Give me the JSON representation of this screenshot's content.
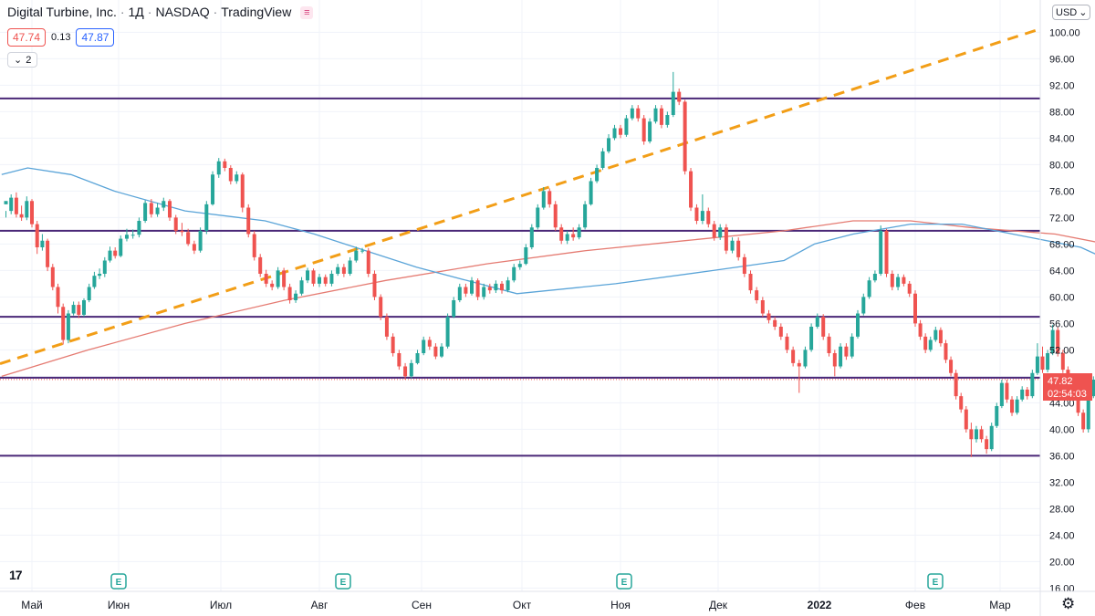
{
  "header": {
    "symbol": "Digital Turbine, Inc.",
    "interval": "1Д",
    "exchange": "NASDAQ",
    "source": "TradingView"
  },
  "prices": {
    "bid": "47.74",
    "spread": "0.13",
    "ask": "47.87"
  },
  "indicators_toggle": {
    "count": "2"
  },
  "currency": "USD",
  "last_price": {
    "value": "47.82",
    "countdown": "02:54:03"
  },
  "colors": {
    "up": "#26a69a",
    "down": "#ef5350",
    "ma_fast": "#5aa4d8",
    "ma_slow": "#e57b72",
    "horizontal_levels": "#4a2777",
    "trendline": "#f29e17"
  },
  "chart_data": {
    "type": "candlestick",
    "ylim": [
      16,
      100
    ],
    "yticks": [
      "16.00",
      "20.00",
      "24.00",
      "28.00",
      "32.00",
      "36.00",
      "40.00",
      "44.00",
      "48.00",
      "52.00",
      "56.00",
      "60.00",
      "64.00",
      "68.00",
      "72.00",
      "76.00",
      "80.00",
      "84.00",
      "88.00",
      "92.00",
      "96.00",
      "100.00"
    ],
    "xticks": [
      "Май",
      "Июн",
      "Июл",
      "Авг",
      "Сен",
      "Окт",
      "Ноя",
      "Дек",
      "2022",
      "Фев",
      "Мар"
    ],
    "horizontal_levels": [
      90,
      70,
      57,
      47.8,
      36
    ],
    "trendline": {
      "start": [
        "Апр 26",
        49.9
      ],
      "end": [
        "Мар 1",
        90
      ]
    },
    "earnings_markers": [
      "Июн 3",
      "Авг 3",
      "Ноя 1",
      "Фев 7"
    ],
    "ma_fast": [
      [
        0,
        78.5
      ],
      [
        0.3,
        79.5
      ],
      [
        0.8,
        78.5
      ],
      [
        1.3,
        76
      ],
      [
        2,
        73
      ],
      [
        2.8,
        71.5
      ],
      [
        3.3,
        69.5
      ],
      [
        3.8,
        67
      ],
      [
        4.3,
        64.5
      ],
      [
        4.8,
        62.5
      ],
      [
        5.3,
        60.5
      ],
      [
        6.3,
        62
      ],
      [
        7.3,
        64
      ],
      [
        8,
        65.5
      ],
      [
        8.3,
        68
      ],
      [
        8.7,
        69.5
      ],
      [
        9.3,
        71
      ],
      [
        9.9,
        71
      ],
      [
        10.5,
        69.5
      ],
      [
        11.3,
        67.5
      ],
      [
        11.9,
        64
      ],
      [
        12.4,
        59
      ],
      [
        13,
        56
      ],
      [
        13.5,
        53
      ],
      [
        13.9,
        51
      ],
      [
        14.2,
        51
      ]
    ],
    "ma_slow": [
      [
        0,
        48
      ],
      [
        1,
        52
      ],
      [
        2,
        56
      ],
      [
        3,
        59.5
      ],
      [
        4,
        62.5
      ],
      [
        5,
        65
      ],
      [
        6,
        67
      ],
      [
        7,
        68.5
      ],
      [
        8,
        70
      ],
      [
        8.7,
        71.5
      ],
      [
        9.3,
        71.5
      ],
      [
        10,
        70.5
      ],
      [
        11,
        69.5
      ],
      [
        12,
        67
      ],
      [
        13,
        64
      ],
      [
        14,
        62.5
      ],
      [
        14.2,
        62.3
      ]
    ],
    "candles": [
      [
        0.0,
        74,
        74.5,
        73,
        72
      ],
      [
        0.06,
        73,
        75,
        75.5,
        72.5
      ],
      [
        0.12,
        75,
        72.5,
        75.8,
        72
      ],
      [
        0.18,
        72.5,
        72,
        73.8,
        71.5
      ],
      [
        0.24,
        72,
        74.5,
        75.2,
        71.6
      ],
      [
        0.3,
        74.5,
        71,
        74.8,
        70.5
      ],
      [
        0.36,
        71,
        67.5,
        71.5,
        66.5
      ],
      [
        0.42,
        67.5,
        68.5,
        69.5,
        67
      ],
      [
        0.48,
        68.5,
        64.5,
        68.8,
        63.9
      ],
      [
        0.54,
        64.5,
        61.5,
        65,
        61
      ],
      [
        0.6,
        61.5,
        58.5,
        62,
        57.5
      ],
      [
        0.66,
        58.5,
        53.5,
        59,
        52.8
      ],
      [
        0.72,
        53.5,
        57.5,
        58,
        53
      ],
      [
        0.78,
        57.5,
        58.8,
        59.3,
        57.2
      ],
      [
        0.84,
        58.8,
        57.3,
        59.3,
        56.8
      ],
      [
        0.9,
        57.3,
        59.5,
        59.8,
        57
      ],
      [
        0.96,
        59.5,
        61.5,
        62,
        59.2
      ],
      [
        1.02,
        61.5,
        63.2,
        63.8,
        61.2
      ],
      [
        1.08,
        63.2,
        63.5,
        64.3,
        62.7
      ],
      [
        1.14,
        63.5,
        65.5,
        66,
        63
      ],
      [
        1.2,
        65.5,
        67,
        67.6,
        65.2
      ],
      [
        1.26,
        67,
        66.2,
        67.5,
        65.8
      ],
      [
        1.32,
        66.2,
        68.8,
        69.3,
        66
      ],
      [
        1.38,
        68.8,
        69.4,
        70.3,
        68.4
      ],
      [
        1.44,
        69.4,
        69.4,
        70.2,
        68.8
      ],
      [
        1.5,
        69.4,
        71.5,
        72,
        69
      ],
      [
        1.56,
        71.5,
        74.2,
        74.6,
        71.2
      ],
      [
        1.62,
        74.2,
        72.5,
        74.8,
        72
      ],
      [
        1.68,
        72.5,
        73.5,
        74.2,
        72.1
      ],
      [
        1.74,
        73.5,
        74.5,
        75,
        73
      ],
      [
        1.8,
        74.5,
        72,
        74.8,
        71.5
      ],
      [
        1.86,
        72,
        70,
        72.4,
        69.5
      ],
      [
        1.92,
        70,
        69.8,
        71.2,
        69.2
      ],
      [
        1.98,
        69.8,
        68,
        70.3,
        67.7
      ],
      [
        2.04,
        68,
        67,
        68.5,
        66.5
      ],
      [
        2.1,
        67,
        70,
        70.5,
        66.7
      ],
      [
        2.16,
        70,
        74,
        74.5,
        69.5
      ],
      [
        2.22,
        74,
        78.5,
        79,
        73.8
      ],
      [
        2.28,
        78.5,
        80.5,
        81,
        78
      ],
      [
        2.34,
        80.5,
        79.5,
        80.9,
        79
      ],
      [
        2.4,
        79.5,
        77.5,
        79.9,
        77
      ],
      [
        2.46,
        77.5,
        78.5,
        79,
        77.1
      ],
      [
        2.52,
        78.5,
        73.5,
        78.8,
        72.8
      ],
      [
        2.58,
        73.5,
        69.5,
        74,
        69
      ],
      [
        2.64,
        69.5,
        66,
        70,
        65.5
      ],
      [
        2.7,
        66,
        63.5,
        66.5,
        63
      ],
      [
        2.76,
        63.5,
        62,
        64.1,
        61.5
      ],
      [
        2.82,
        62,
        61.5,
        62.5,
        61
      ],
      [
        2.88,
        61.5,
        64,
        64.5,
        61.2
      ],
      [
        2.94,
        64,
        61.5,
        64.4,
        61
      ],
      [
        3.0,
        61.5,
        59.5,
        62,
        59
      ],
      [
        3.06,
        59.5,
        60.5,
        61,
        59.1
      ],
      [
        3.12,
        60.5,
        62.5,
        63,
        60.2
      ],
      [
        3.18,
        62.5,
        64,
        64.4,
        62.1
      ],
      [
        3.24,
        64,
        62,
        64.3,
        61.6
      ],
      [
        3.3,
        62,
        63,
        63.5,
        61.5
      ],
      [
        3.36,
        63,
        62,
        63.4,
        61.6
      ],
      [
        3.42,
        62,
        63.5,
        64,
        61.6
      ],
      [
        3.48,
        63.5,
        64.5,
        65,
        63.2
      ],
      [
        3.54,
        64.5,
        63.5,
        65,
        63
      ],
      [
        3.6,
        63.5,
        65.5,
        66,
        63.2
      ],
      [
        3.66,
        65.5,
        67,
        67.6,
        65.2
      ],
      [
        3.72,
        67,
        67,
        67.4,
        66.6
      ],
      [
        3.78,
        67,
        63.5,
        67.4,
        63
      ],
      [
        3.84,
        63.5,
        60,
        64,
        59.5
      ],
      [
        3.9,
        60,
        57,
        60.4,
        56.5
      ],
      [
        3.96,
        57,
        54,
        57.5,
        53.5
      ],
      [
        4.02,
        54,
        51.5,
        54.5,
        51
      ],
      [
        4.08,
        51.5,
        49.5,
        52,
        49
      ],
      [
        4.14,
        49.5,
        48,
        50,
        47.5
      ],
      [
        4.2,
        48,
        50,
        50.5,
        47.7
      ],
      [
        4.26,
        50,
        51.5,
        52,
        49.8
      ],
      [
        4.32,
        51.5,
        53.5,
        54,
        51.2
      ],
      [
        4.38,
        53.5,
        52.5,
        54,
        52
      ],
      [
        4.44,
        52.5,
        51,
        53,
        50.6
      ],
      [
        4.5,
        51,
        52.5,
        53,
        50.8
      ],
      [
        4.56,
        52.5,
        57,
        57.5,
        52.2
      ],
      [
        4.62,
        57,
        59.5,
        60,
        56.8
      ],
      [
        4.68,
        59.5,
        61.5,
        62,
        59.2
      ],
      [
        4.74,
        61.5,
        60.5,
        62,
        60
      ],
      [
        4.8,
        60.5,
        62.5,
        63,
        60.2
      ],
      [
        4.86,
        62.5,
        60,
        62.8,
        59.5
      ],
      [
        4.92,
        60,
        61.5,
        62,
        59.6
      ],
      [
        4.98,
        61.5,
        61,
        62,
        60.5
      ],
      [
        5.04,
        61,
        62,
        62.5,
        60.6
      ],
      [
        5.1,
        62,
        61,
        62.4,
        60.5
      ],
      [
        5.16,
        61,
        62.5,
        63,
        60.7
      ],
      [
        5.22,
        62.5,
        64.5,
        65,
        62.2
      ],
      [
        5.28,
        64.5,
        65,
        65.5,
        64.1
      ],
      [
        5.34,
        65,
        67.5,
        68,
        64.8
      ],
      [
        5.4,
        67.5,
        70.5,
        71,
        67.2
      ],
      [
        5.46,
        70.5,
        73.5,
        74,
        70.2
      ],
      [
        5.52,
        73.5,
        76,
        76.6,
        73.2
      ],
      [
        5.58,
        76,
        74,
        76.4,
        73.5
      ],
      [
        5.64,
        74,
        70.5,
        74.5,
        70
      ],
      [
        5.7,
        70.5,
        68.5,
        71,
        68
      ],
      [
        5.76,
        68.5,
        69.5,
        70,
        68
      ],
      [
        5.82,
        69.5,
        69,
        70.5,
        68.5
      ],
      [
        5.88,
        69,
        70.5,
        71,
        68.7
      ],
      [
        5.94,
        70.5,
        74,
        74.5,
        70.2
      ],
      [
        6.0,
        74,
        77.5,
        78,
        73.8
      ],
      [
        6.06,
        77.5,
        79.5,
        80,
        77.2
      ],
      [
        6.12,
        79.5,
        82,
        82.5,
        79.2
      ],
      [
        6.18,
        82,
        84,
        84.6,
        81.7
      ],
      [
        6.24,
        84,
        85.5,
        86,
        83.7
      ],
      [
        6.3,
        85.5,
        84.5,
        86,
        84
      ],
      [
        6.36,
        84.5,
        87,
        87.5,
        84.2
      ],
      [
        6.42,
        87,
        88.5,
        89,
        86.7
      ],
      [
        6.48,
        88.5,
        87,
        89,
        86.5
      ],
      [
        6.54,
        87,
        83.5,
        87.5,
        83
      ],
      [
        6.6,
        83.5,
        86.5,
        87,
        83.2
      ],
      [
        6.66,
        86.5,
        88.5,
        89,
        86.2
      ],
      [
        6.72,
        88.5,
        86,
        89,
        85.5
      ],
      [
        6.78,
        86,
        87.5,
        88,
        85.6
      ],
      [
        6.84,
        87.5,
        91,
        94,
        87.2
      ],
      [
        6.9,
        91,
        89.5,
        91.5,
        89
      ],
      [
        6.96,
        89.5,
        79,
        89.8,
        78.5
      ],
      [
        7.02,
        79,
        73.5,
        79.5,
        73
      ],
      [
        7.08,
        73.5,
        71.5,
        74,
        71
      ],
      [
        7.14,
        71.5,
        73,
        75.5,
        71
      ],
      [
        7.2,
        73,
        71,
        73.5,
        70.5
      ],
      [
        7.26,
        71,
        69,
        71.5,
        68.5
      ],
      [
        7.32,
        69,
        70.5,
        71,
        68.6
      ],
      [
        7.38,
        70.5,
        67,
        71,
        66.5
      ],
      [
        7.44,
        67,
        68.5,
        69,
        66.6
      ],
      [
        7.5,
        68.5,
        66,
        69,
        65.5
      ],
      [
        7.56,
        66,
        63.5,
        66.5,
        63
      ],
      [
        7.62,
        63.5,
        61,
        64,
        60.5
      ],
      [
        7.68,
        61,
        59.5,
        61.5,
        59
      ],
      [
        7.74,
        59.5,
        57.5,
        60,
        57
      ],
      [
        7.8,
        57.5,
        56.5,
        58,
        56
      ],
      [
        7.86,
        56.5,
        55.5,
        57,
        55
      ],
      [
        7.92,
        55.5,
        54,
        56,
        53.5
      ],
      [
        7.98,
        54,
        52,
        54.5,
        51.5
      ],
      [
        8.04,
        52,
        50,
        52.5,
        49.5
      ],
      [
        8.1,
        50,
        49.5,
        50.5,
        45.5
      ],
      [
        8.16,
        49.5,
        52,
        52.5,
        49.2
      ],
      [
        8.22,
        52,
        55.5,
        56,
        51.7
      ],
      [
        8.28,
        55.5,
        57,
        57.5,
        55.2
      ],
      [
        8.34,
        57,
        54,
        57.4,
        53.5
      ],
      [
        8.4,
        54,
        51.5,
        54.5,
        51
      ],
      [
        8.46,
        51.5,
        49.5,
        52,
        48
      ],
      [
        8.52,
        49.5,
        52.5,
        53,
        49.2
      ],
      [
        8.58,
        52.5,
        51,
        53,
        50.5
      ],
      [
        8.64,
        51,
        54,
        54.5,
        50.7
      ],
      [
        8.7,
        54,
        57.5,
        58,
        53.7
      ],
      [
        8.76,
        57.5,
        60,
        60.5,
        57.2
      ],
      [
        8.82,
        60,
        62.5,
        63,
        59.7
      ],
      [
        8.88,
        62.5,
        63.5,
        64,
        62.2
      ],
      [
        8.94,
        63.5,
        70,
        70.8,
        63.2
      ],
      [
        9.0,
        70,
        63.5,
        70.3,
        63
      ],
      [
        9.06,
        63.5,
        61.5,
        64,
        61
      ],
      [
        9.12,
        61.5,
        63,
        63.5,
        61
      ],
      [
        9.18,
        63,
        62,
        63.4,
        61.6
      ],
      [
        9.24,
        62,
        60.5,
        62.4,
        60
      ],
      [
        9.3,
        60.5,
        56,
        61,
        55.5
      ],
      [
        9.36,
        56,
        54,
        56.5,
        53.5
      ],
      [
        9.42,
        54,
        52,
        54.5,
        51.5
      ],
      [
        9.48,
        52,
        53.5,
        54,
        51.7
      ],
      [
        9.54,
        53.5,
        55,
        55.5,
        53.2
      ],
      [
        9.6,
        55,
        53,
        55.4,
        52.5
      ],
      [
        9.66,
        53,
        50.5,
        53.5,
        50
      ],
      [
        9.72,
        50.5,
        48.5,
        51,
        48
      ],
      [
        9.78,
        48.5,
        45,
        49,
        44.5
      ],
      [
        9.84,
        45,
        43,
        45.5,
        42.5
      ],
      [
        9.9,
        43,
        40,
        43.5,
        39.5
      ],
      [
        9.96,
        40,
        38.5,
        41,
        35.8
      ],
      [
        10.02,
        38.5,
        40,
        40.5,
        38
      ],
      [
        10.08,
        40,
        38.5,
        40.5,
        38
      ],
      [
        10.14,
        38.5,
        37,
        39,
        36.3
      ],
      [
        10.2,
        37,
        40.5,
        41,
        36.7
      ],
      [
        10.26,
        40.5,
        43.5,
        44,
        40.2
      ],
      [
        10.32,
        43.5,
        47,
        47.5,
        43.2
      ],
      [
        10.38,
        47,
        44.5,
        47.5,
        44
      ],
      [
        10.44,
        44.5,
        42.5,
        45,
        42
      ],
      [
        10.5,
        42.5,
        44.5,
        45,
        42.2
      ],
      [
        10.56,
        44.5,
        46,
        46.5,
        44.2
      ],
      [
        10.62,
        46,
        45,
        46.4,
        44.5
      ],
      [
        10.68,
        45,
        48.5,
        49,
        44.7
      ],
      [
        10.74,
        48.5,
        51,
        53,
        48.2
      ],
      [
        10.8,
        51,
        49,
        52.5,
        48.5
      ],
      [
        10.86,
        49,
        51.5,
        52,
        48.6
      ],
      [
        10.92,
        51.5,
        55,
        55.8,
        51.2
      ],
      [
        10.98,
        55,
        51.5,
        55.4,
        51
      ],
      [
        11.04,
        51.5,
        49,
        52,
        48.5
      ],
      [
        11.1,
        49,
        47,
        49.5,
        46.5
      ],
      [
        11.16,
        47,
        45.5,
        47.5,
        45
      ],
      [
        11.22,
        45.5,
        42.5,
        46,
        42
      ],
      [
        11.28,
        42.5,
        40,
        43,
        39.5
      ],
      [
        11.34,
        40,
        45,
        45.5,
        39.5
      ],
      [
        11.4,
        45,
        47.5,
        48,
        44.7
      ],
      [
        11.46,
        47.5,
        48.5,
        49,
        47
      ],
      [
        11.52,
        48.5,
        47.8,
        49,
        47.5
      ]
    ]
  }
}
